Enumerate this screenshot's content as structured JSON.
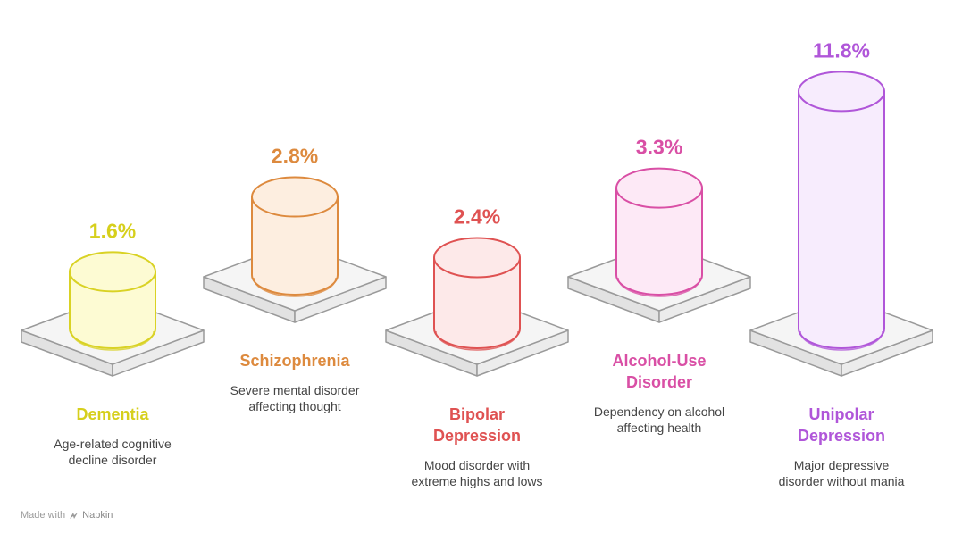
{
  "chart_data": {
    "type": "bar",
    "categories": [
      "Dementia",
      "Schizophrenia",
      "Bipolar Depression",
      "Alcohol-Use Disorder",
      "Unipolar Depression"
    ],
    "values": [
      1.6,
      2.8,
      2.4,
      3.3,
      11.8
    ],
    "value_labels": [
      "1.6%",
      "2.8%",
      "2.4%",
      "3.3%",
      "11.8%"
    ],
    "title": "",
    "xlabel": "",
    "ylabel": "",
    "items": [
      {
        "label_lines": [
          "Dementia"
        ],
        "desc_lines": [
          "Age-related cognitive",
          "decline disorder"
        ],
        "stroke": "#d9d224",
        "fill": "#fdfbd3",
        "text_color": "#d6cf1c"
      },
      {
        "label_lines": [
          "Schizophrenia"
        ],
        "desc_lines": [
          "Severe mental disorder",
          "affecting thought"
        ],
        "stroke": "#dd8a3e",
        "fill": "#fdeee0",
        "text_color": "#dd8a3e"
      },
      {
        "label_lines": [
          "Bipolar",
          "Depression"
        ],
        "desc_lines": [
          "Mood disorder with",
          "extreme highs and lows"
        ],
        "stroke": "#df5252",
        "fill": "#fde9e9",
        "text_color": "#df5252"
      },
      {
        "label_lines": [
          "Alcohol-Use",
          "Disorder"
        ],
        "desc_lines": [
          "Dependency on alcohol",
          "affecting health"
        ],
        "stroke": "#d94fa5",
        "fill": "#fde9f6",
        "text_color": "#d94fa5"
      },
      {
        "label_lines": [
          "Unipolar",
          "Depression"
        ],
        "desc_lines": [
          "Major depressive",
          "disorder without mania"
        ],
        "stroke": "#b056d9",
        "fill": "#f7ecfd",
        "text_color": "#b056d9"
      }
    ]
  },
  "footer": {
    "made_with": "Made with",
    "brand": "Napkin",
    "icon": "napkin-logo-icon"
  }
}
